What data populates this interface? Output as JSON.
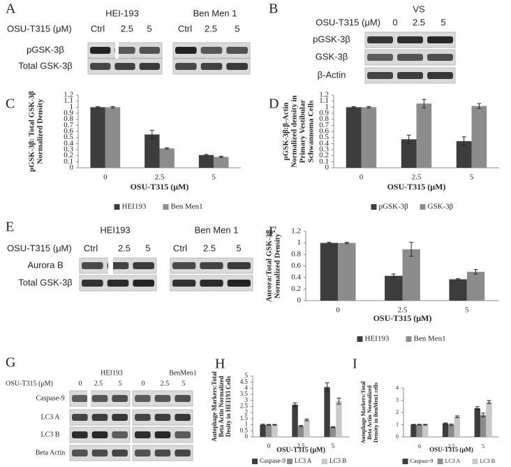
{
  "blots": [
    {
      "letter": "A",
      "cell_lines": [
        "HEI-193",
        "Ben Men 1"
      ],
      "treatment_label": "OSU-T315 (μM)",
      "lanes": [
        "Ctrl",
        "2.5",
        "5",
        "Ctrl",
        "2.5",
        "5"
      ],
      "rows": [
        "pGSK-3β",
        "Total GSK-3β"
      ]
    },
    {
      "letter": "B",
      "cell_lines": [
        "VS"
      ],
      "treatment_label": "OSU-T315 (μM)",
      "lanes": [
        "0",
        "2.5",
        "5"
      ],
      "rows": [
        "pGSK-3β",
        "GSK-3β",
        "β-Actin"
      ]
    },
    {
      "letter": "E",
      "cell_lines": [
        "HEI193",
        "Ben Men 1"
      ],
      "treatment_label": "OSU-T315 (μM)",
      "lanes": [
        "Ctrl",
        "2.5",
        "5",
        "Ctrl",
        "2.5",
        "5"
      ],
      "rows": [
        "Aurora B",
        "Total GSK-3β"
      ]
    },
    {
      "letter": "G",
      "cell_lines": [
        "HEI193",
        "BenMen1"
      ],
      "treatment_label": "OSU-T315 (μM)",
      "lanes": [
        "0",
        "2.5",
        "5",
        "0",
        "2.5",
        "5"
      ],
      "rows": [
        "Caspase-9",
        "LC3 A",
        "LC3 B",
        "Beta Actin"
      ]
    }
  ],
  "chart_data": [
    {
      "type": "bar",
      "letter": "C",
      "categories": [
        "0",
        "2.5",
        "5"
      ],
      "xlabel": "OSU-T315 (μM)",
      "ylabel": [
        "pGSK-3β: Total GSK-3β",
        "Normalized Density"
      ],
      "ylim": [
        0,
        1.2
      ],
      "yticks": [
        0,
        0.1,
        0.2,
        0.3,
        0.4,
        0.5,
        0.6,
        0.7,
        0.8,
        0.9,
        1,
        1.1,
        1.2
      ],
      "series": [
        {
          "name": "HEI193",
          "color": "#3d3d3d",
          "values": [
            1,
            0.55,
            0.21
          ],
          "errors": [
            0.01,
            0.07,
            0.01
          ]
        },
        {
          "name": "Ben Men1",
          "color": "#8c8c8c",
          "values": [
            1,
            0.32,
            0.18
          ],
          "errors": [
            0.01,
            0.01,
            0.01
          ]
        }
      ]
    },
    {
      "type": "bar",
      "letter": "D",
      "categories": [
        "0",
        "2.5",
        "5"
      ],
      "xlabel": "OSU-T315 (μM)",
      "ylabel": [
        "pGSK-3β:β-Actin",
        "Normalized density in",
        "Primary Vestibular",
        "Schwannoma Cells"
      ],
      "ylim": [
        0,
        1.2
      ],
      "yticks": [
        0,
        0.1,
        0.2,
        0.3,
        0.4,
        0.5,
        0.6,
        0.7,
        0.8,
        0.9,
        1,
        1.1,
        1.2
      ],
      "series": [
        {
          "name": "pGSK-3β",
          "color": "#3d3d3d",
          "values": [
            1,
            0.47,
            0.44
          ],
          "errors": [
            0.01,
            0.07,
            0.07
          ]
        },
        {
          "name": "GSK-3β",
          "color": "#8c8c8c",
          "values": [
            1,
            1.06,
            1.02
          ],
          "errors": [
            0.01,
            0.07,
            0.04
          ]
        }
      ]
    },
    {
      "type": "bar",
      "letter": "F",
      "categories": [
        "0",
        "2.5",
        "5"
      ],
      "xlabel": "OSU-T315 (μM)",
      "ylabel": [
        "Aurora:Total GSK-3β",
        "Normalized Density"
      ],
      "ylim": [
        0,
        1.2
      ],
      "yticks": [
        0,
        0.2,
        0.4,
        0.6,
        0.8,
        1,
        1.2
      ],
      "series": [
        {
          "name": "HEI193",
          "color": "#3d3d3d",
          "values": [
            1,
            0.43,
            0.37
          ],
          "errors": [
            0.01,
            0.03,
            0.01
          ]
        },
        {
          "name": "Ben Men1",
          "color": "#8c8c8c",
          "values": [
            1,
            0.89,
            0.5
          ],
          "errors": [
            0.01,
            0.12,
            0.04
          ]
        }
      ]
    },
    {
      "type": "bar",
      "letter": "H",
      "categories": [
        "0",
        "2.5",
        "5"
      ],
      "xlabel": "OSU-T315 (μM)",
      "ylabel": [
        "Autophage Markers:Total",
        "Beta Actin Normalized",
        "Desity in HEI193 Cells"
      ],
      "ylim": [
        0,
        5
      ],
      "yticks": [
        0,
        0.5,
        1,
        1.5,
        2,
        2.5,
        3,
        3.5,
        4,
        4.5,
        5
      ],
      "series": [
        {
          "name": "Caspase-9",
          "color": "#3d3d3d",
          "values": [
            1,
            2.65,
            4.1
          ],
          "errors": [
            0.05,
            0.15,
            0.35
          ]
        },
        {
          "name": "LC3 A",
          "color": "#8c8c8c",
          "values": [
            1,
            0.9,
            0.8
          ],
          "errors": [
            0.03,
            0.05,
            0.03
          ]
        },
        {
          "name": "LC3 B",
          "color": "#c8c8c8",
          "values": [
            1,
            1.4,
            2.95
          ],
          "errors": [
            0.03,
            0.07,
            0.25
          ]
        }
      ]
    },
    {
      "type": "bar",
      "letter": "I",
      "categories": [
        "0",
        "2.5",
        "5"
      ],
      "xlabel": "OSU-T315 (μM)",
      "ylabel": [
        "Autophage Markers:Total",
        "Beta Actin Normalized",
        "Density in BenMen1 cells"
      ],
      "ylim": [
        0,
        4
      ],
      "yticks": [
        0,
        1,
        2,
        3,
        4
      ],
      "series": [
        {
          "name": "Caspase-9",
          "color": "#3d3d3d",
          "values": [
            1,
            1.1,
            2.35
          ],
          "errors": [
            0.03,
            0.04,
            0.12
          ]
        },
        {
          "name": "LC3 A",
          "color": "#8c8c8c",
          "values": [
            1,
            1.0,
            1.8
          ],
          "errors": [
            0.03,
            0.05,
            0.15
          ]
        },
        {
          "name": "LC3 B",
          "color": "#c8c8c8",
          "values": [
            1,
            1.65,
            2.85
          ],
          "errors": [
            0.03,
            0.07,
            0.12
          ]
        }
      ]
    }
  ]
}
